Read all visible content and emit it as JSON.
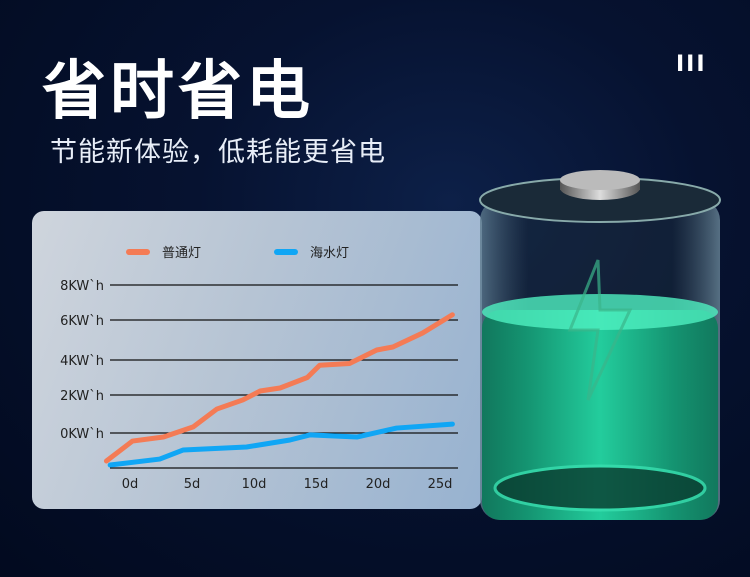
{
  "header": {
    "title": "省时省电",
    "subtitle": "节能新体验，低耗能更省电",
    "menu_icon_label": "III"
  },
  "colors": {
    "ordinary": "#f47b55",
    "seawater": "#10a6f5"
  },
  "chart_data": {
    "type": "line",
    "title": "",
    "xlabel": "",
    "ylabel": "",
    "x_ticks": [
      "0d",
      "5d",
      "10d",
      "15d",
      "20d",
      "25d"
    ],
    "x_tick_values": [
      0,
      5,
      10,
      15,
      20,
      25
    ],
    "y_ticks": [
      "8KW`h",
      "6KW`h",
      "4KW`h",
      "2KW`h",
      "0KW`h"
    ],
    "y_tick_values": [
      8,
      6,
      4,
      2,
      0
    ],
    "xlim": [
      -2,
      26
    ],
    "ylim": [
      -2,
      8
    ],
    "grid": true,
    "legend": "top",
    "series": [
      {
        "name": "普通灯",
        "color": "#f47b55",
        "x": [
          -1.9,
          0.2,
          2.7,
          5.1,
          7.0,
          9.1,
          10.5,
          12.1,
          14.3,
          15.3,
          17.7,
          19.9,
          21.2,
          23.6,
          26.0
        ],
        "y": [
          -1.6,
          -0.46,
          -0.23,
          0.32,
          1.26,
          1.74,
          2.23,
          2.4,
          3.0,
          3.7,
          3.8,
          4.5,
          4.65,
          5.35,
          6.3
        ]
      },
      {
        "name": "海水灯",
        "color": "#10a6f5",
        "x": [
          -1.6,
          2.4,
          4.3,
          9.4,
          12.9,
          14.5,
          18.3,
          21.5,
          26.0
        ],
        "y": [
          -1.83,
          -1.49,
          -0.97,
          -0.8,
          -0.4,
          -0.11,
          -0.23,
          0.26,
          0.47
        ]
      }
    ]
  }
}
